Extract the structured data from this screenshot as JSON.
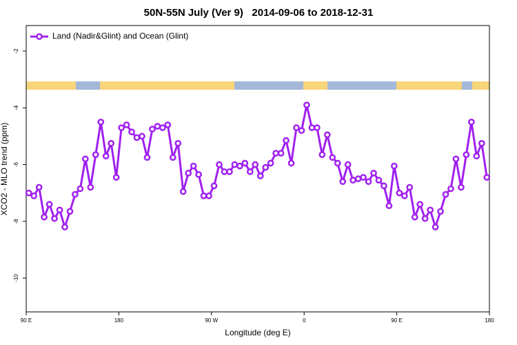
{
  "chart_data": {
    "type": "line",
    "title": "50N-55N July (Ver 9)   2014-09-06 to 2018-12-31",
    "xlabel": "Longitude (deg E)",
    "ylabel": "XCO2 - MLO trend (ppm)",
    "xlim": [
      90,
      540
    ],
    "xticks": [
      {
        "value": 90,
        "label": "90 E"
      },
      180,
      {
        "value": 270,
        "label": "90 W"
      },
      {
        "value": 360,
        "label": "0"
      },
      {
        "value": 450,
        "label": "90 E"
      },
      {
        "value": 540,
        "label": "180"
      }
    ],
    "ylim": [
      -11.19,
      -1.1
    ],
    "yticks": [
      -2,
      -4,
      -6,
      -8,
      -10
    ],
    "legend": "top-left",
    "x": [
      92.5,
      97.5,
      102.5,
      107.5,
      112.5,
      117.5,
      122.5,
      127.5,
      132.5,
      137.5,
      142.5,
      147.5,
      152.5,
      157.5,
      162.5,
      167.5,
      172.5,
      177.5,
      182.5,
      187.5,
      192.5,
      197.5,
      202.5,
      207.5,
      212.5,
      217.5,
      222.5,
      227.5,
      232.5,
      237.5,
      242.5,
      247.5,
      252.5,
      257.5,
      262.5,
      267.5,
      272.5,
      277.5,
      282.5,
      287.5,
      292.5,
      297.5,
      302.5,
      307.5,
      312.5,
      317.5,
      322.5,
      327.5,
      332.5,
      337.5,
      342.5,
      347.5,
      352.5,
      357.5,
      362.5,
      367.5,
      372.5,
      377.5,
      382.5,
      387.5,
      392.5,
      397.5,
      402.5,
      407.5,
      412.5,
      417.5,
      422.5,
      427.5,
      432.5,
      437.5,
      442.5,
      447.5,
      452.5,
      457.5,
      462.5,
      467.5,
      472.5,
      477.5,
      482.5,
      487.5,
      492.5,
      497.5,
      502.5,
      507.5,
      512.5,
      517.5,
      522.5,
      527.5,
      532.5,
      537.5
    ],
    "series": [
      {
        "name": "Land (Nadir&Glint) and Ocean (Glint)",
        "color": "#a020f0",
        "values": [
          -7.0,
          -7.1,
          -6.8,
          -7.85,
          -7.4,
          -7.9,
          -7.6,
          -8.2,
          -7.65,
          -7.05,
          -6.85,
          -5.8,
          -6.8,
          -5.65,
          -4.5,
          -5.7,
          -5.25,
          -6.45,
          -4.7,
          -4.6,
          -4.85,
          -5.05,
          -5.0,
          -5.75,
          -4.75,
          -4.65,
          -4.7,
          -4.6,
          -5.75,
          -5.25,
          -6.95,
          -6.3,
          -6.05,
          -6.35,
          -7.1,
          -7.1,
          -6.75,
          -6.0,
          -6.25,
          -6.25,
          -6.0,
          -6.05,
          -5.95,
          -6.25,
          -6.0,
          -6.4,
          -6.1,
          -5.95,
          -5.6,
          -5.6,
          -5.15,
          -5.95,
          -4.7,
          -4.8,
          -3.9,
          -4.7,
          -4.7,
          -5.65,
          -4.95,
          -5.75,
          -5.95,
          -6.6,
          -6.0,
          -6.55,
          -6.5,
          -6.45,
          -6.6,
          -6.3,
          -6.55,
          -6.75,
          -7.45,
          -6.05,
          -7.0,
          -7.1,
          -6.8,
          -7.85,
          -7.4,
          -7.9,
          -7.6,
          -8.2,
          -7.65,
          -7.05,
          -6.85,
          -5.8,
          -6.8,
          -5.65,
          -4.5,
          -5.7,
          -5.25,
          -6.45
        ]
      }
    ]
  }
}
